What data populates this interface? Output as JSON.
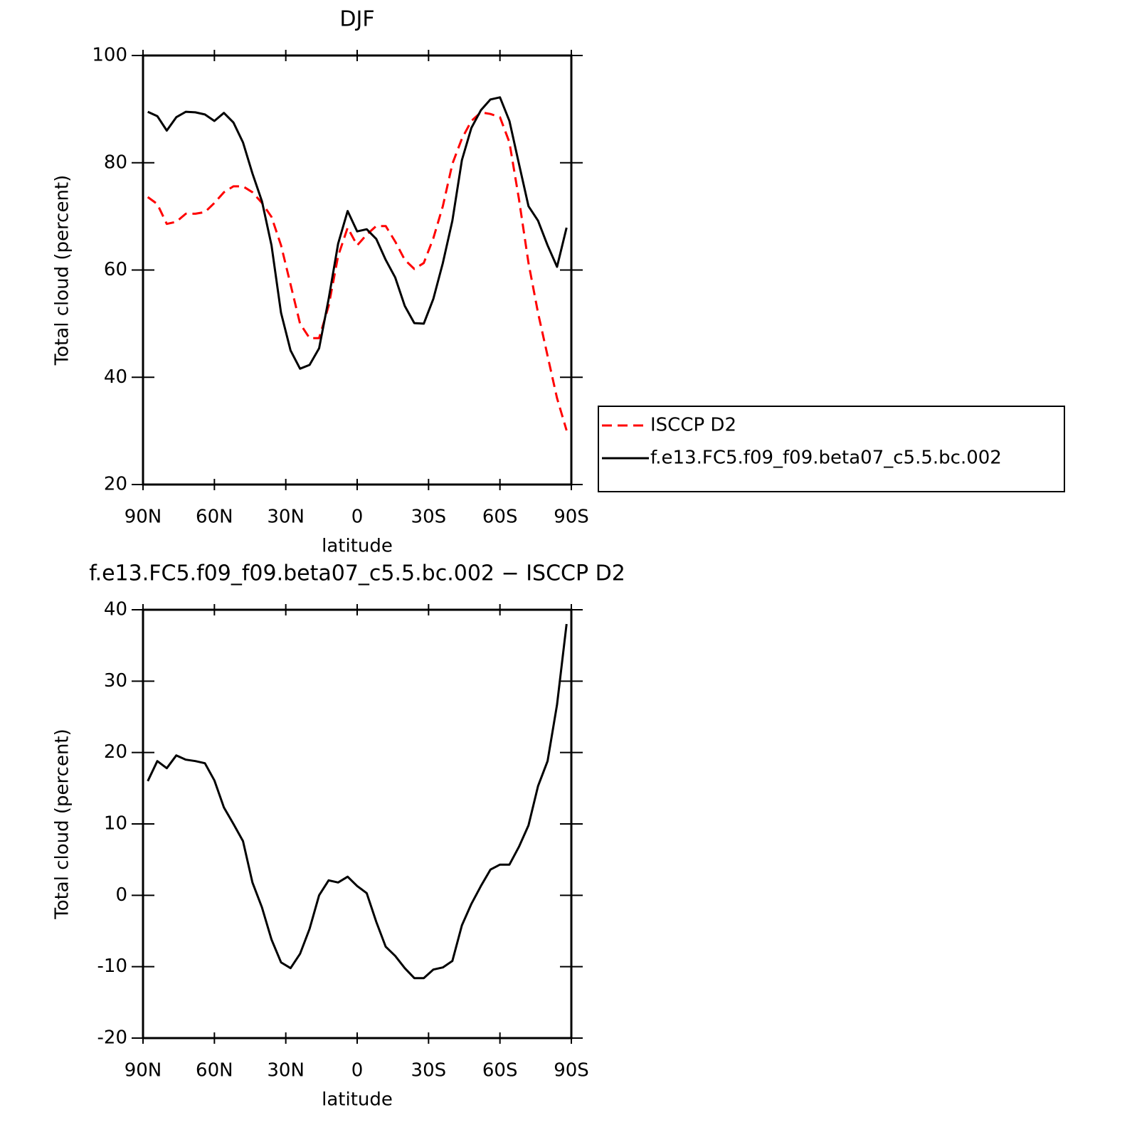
{
  "chart_data": [
    {
      "type": "line",
      "title": "DJF",
      "x_label": "latitude",
      "y_label": "Total cloud (percent)",
      "x": [
        88,
        84,
        80,
        76,
        72,
        68,
        64,
        60,
        56,
        52,
        48,
        44,
        40,
        36,
        32,
        28,
        24,
        20,
        16,
        12,
        8,
        4,
        0,
        -4,
        -8,
        -12,
        -16,
        -20,
        -24,
        -28,
        -32,
        -36,
        -40,
        -44,
        -48,
        -52,
        -56,
        -60,
        -64,
        -68,
        -72,
        -76,
        -80,
        -84,
        -88
      ],
      "series": [
        {
          "name": "ISCCP D2",
          "color": "#ff0000",
          "dashed": true,
          "values": [
            73.6,
            72.3,
            68.6,
            69,
            70.5,
            70.5,
            70.8,
            72.5,
            74.5,
            75.6,
            75.6,
            74.5,
            72.5,
            69.9,
            64.6,
            57.3,
            50,
            47.3,
            47.3,
            53.3,
            62.6,
            67.9,
            64.6,
            66.6,
            68.2,
            68.2,
            65.3,
            61.9,
            60.2,
            61.3,
            65.9,
            71.9,
            79.8,
            84.5,
            87.8,
            89.4,
            89.1,
            88.5,
            83.8,
            73.2,
            61.3,
            52,
            44,
            36.1,
            30.1
          ]
        },
        {
          "name": "f.e13.FC5.f09_f09.beta07_c5.5.bc.002",
          "color": "#000000",
          "dashed": false,
          "values": [
            89.5,
            88.7,
            86,
            88.5,
            89.5,
            89.4,
            89,
            87.8,
            89.3,
            87.5,
            83.8,
            78,
            72.8,
            64.6,
            52,
            45,
            41.6,
            42.3,
            45.4,
            54.6,
            64.9,
            71,
            67.2,
            67.6,
            65.8,
            61.9,
            58.6,
            53.3,
            50.1,
            50,
            54.6,
            61.3,
            69.2,
            80.5,
            86.5,
            89.8,
            91.8,
            92.2,
            87.8,
            79.8,
            71.9,
            69.2,
            64.6,
            60.6,
            67.9
          ]
        }
      ],
      "xlim": [
        90,
        -90
      ],
      "xticks": [
        {
          "value": 90,
          "label": "90N"
        },
        {
          "value": 60,
          "label": "60N"
        },
        {
          "value": 30,
          "label": "30N"
        },
        0,
        {
          "value": -30,
          "label": "30S"
        },
        {
          "value": -60,
          "label": "60S"
        },
        {
          "value": -90,
          "label": "90S"
        }
      ],
      "ylim": [
        20,
        100
      ],
      "yticks": [
        20,
        40,
        60,
        80,
        100
      ],
      "legend": "right"
    },
    {
      "type": "line",
      "title": "f.e13.FC5.f09_f09.beta07_c5.5.bc.002 − ISCCP D2",
      "x_label": "latitude",
      "y_label": "Total cloud (percent)",
      "x": [
        88,
        84,
        80,
        76,
        72,
        68,
        64,
        60,
        56,
        52,
        48,
        44,
        40,
        36,
        32,
        28,
        24,
        20,
        16,
        12,
        8,
        4,
        0,
        -4,
        -8,
        -12,
        -16,
        -20,
        -24,
        -28,
        -32,
        -36,
        -40,
        -44,
        -48,
        -52,
        -56,
        -60,
        -64,
        -68,
        -72,
        -76,
        -80,
        -84,
        -88
      ],
      "color": "#000000",
      "values": [
        16,
        18.8,
        17.8,
        19.6,
        19,
        18.8,
        18.5,
        16.1,
        12.3,
        10,
        7.6,
        1.8,
        -1.7,
        -6.2,
        -9.4,
        -10.2,
        -8.2,
        -4.7,
        0,
        2.1,
        1.8,
        2.6,
        1.3,
        0.3,
        -3.7,
        -7.2,
        -8.5,
        -10.2,
        -11.6,
        -11.6,
        -10.4,
        -10.1,
        -9.2,
        -4.2,
        -1.2,
        1.3,
        3.6,
        4.3,
        4.3,
        6.8,
        9.8,
        15.3,
        18.8,
        26.7,
        38
      ],
      "xlim": [
        90,
        -90
      ],
      "xticks": [
        {
          "value": 90,
          "label": "90N"
        },
        {
          "value": 60,
          "label": "60N"
        },
        {
          "value": 30,
          "label": "30N"
        },
        0,
        {
          "value": -30,
          "label": "30S"
        },
        {
          "value": -60,
          "label": "60S"
        },
        {
          "value": -90,
          "label": "90S"
        }
      ],
      "ylim": [
        -20,
        40
      ],
      "yticks": [
        -20,
        -10,
        0,
        10,
        20,
        30,
        40
      ]
    }
  ]
}
